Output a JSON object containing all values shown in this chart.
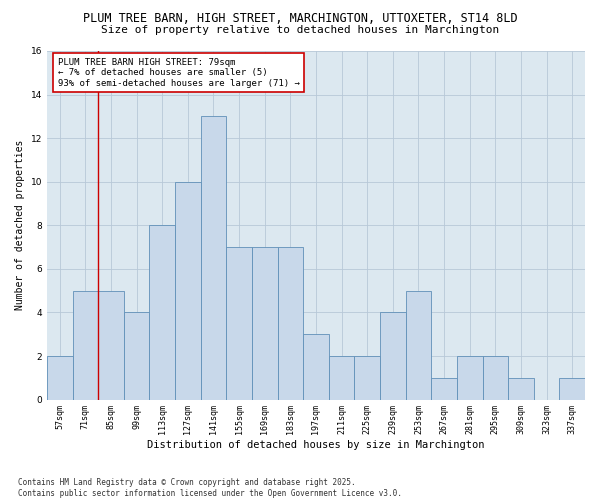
{
  "title_line1": "PLUM TREE BARN, HIGH STREET, MARCHINGTON, UTTOXETER, ST14 8LD",
  "title_line2": "Size of property relative to detached houses in Marchington",
  "xlabel": "Distribution of detached houses by size in Marchington",
  "ylabel": "Number of detached properties",
  "categories": [
    "57sqm",
    "71sqm",
    "85sqm",
    "99sqm",
    "113sqm",
    "127sqm",
    "141sqm",
    "155sqm",
    "169sqm",
    "183sqm",
    "197sqm",
    "211sqm",
    "225sqm",
    "239sqm",
    "253sqm",
    "267sqm",
    "281sqm",
    "295sqm",
    "309sqm",
    "323sqm",
    "337sqm"
  ],
  "bar_values": [
    2,
    5,
    5,
    4,
    8,
    10,
    13,
    7,
    7,
    7,
    3,
    2,
    2,
    4,
    5,
    1,
    2,
    2,
    1,
    0,
    1
  ],
  "bar_color": "#c8d8ea",
  "bar_edge_color": "#6090b8",
  "bar_edge_width": 0.6,
  "grid_color": "#b8c8d8",
  "background_color": "#dce8f0",
  "annotation_text": "PLUM TREE BARN HIGH STREET: 79sqm\n← 7% of detached houses are smaller (5)\n93% of semi-detached houses are larger (71) →",
  "annotation_box_edge_color": "#cc0000",
  "vline_color": "#cc0000",
  "vline_x": 1.5,
  "ylim": [
    0,
    16
  ],
  "yticks": [
    0,
    2,
    4,
    6,
    8,
    10,
    12,
    14,
    16
  ],
  "footnote": "Contains HM Land Registry data © Crown copyright and database right 2025.\nContains public sector information licensed under the Open Government Licence v3.0.",
  "title_fontsize": 8.5,
  "subtitle_fontsize": 8.0,
  "annotation_fontsize": 6.5,
  "tick_fontsize": 6.0,
  "xlabel_fontsize": 7.5,
  "ylabel_fontsize": 7.0,
  "footnote_fontsize": 5.5
}
